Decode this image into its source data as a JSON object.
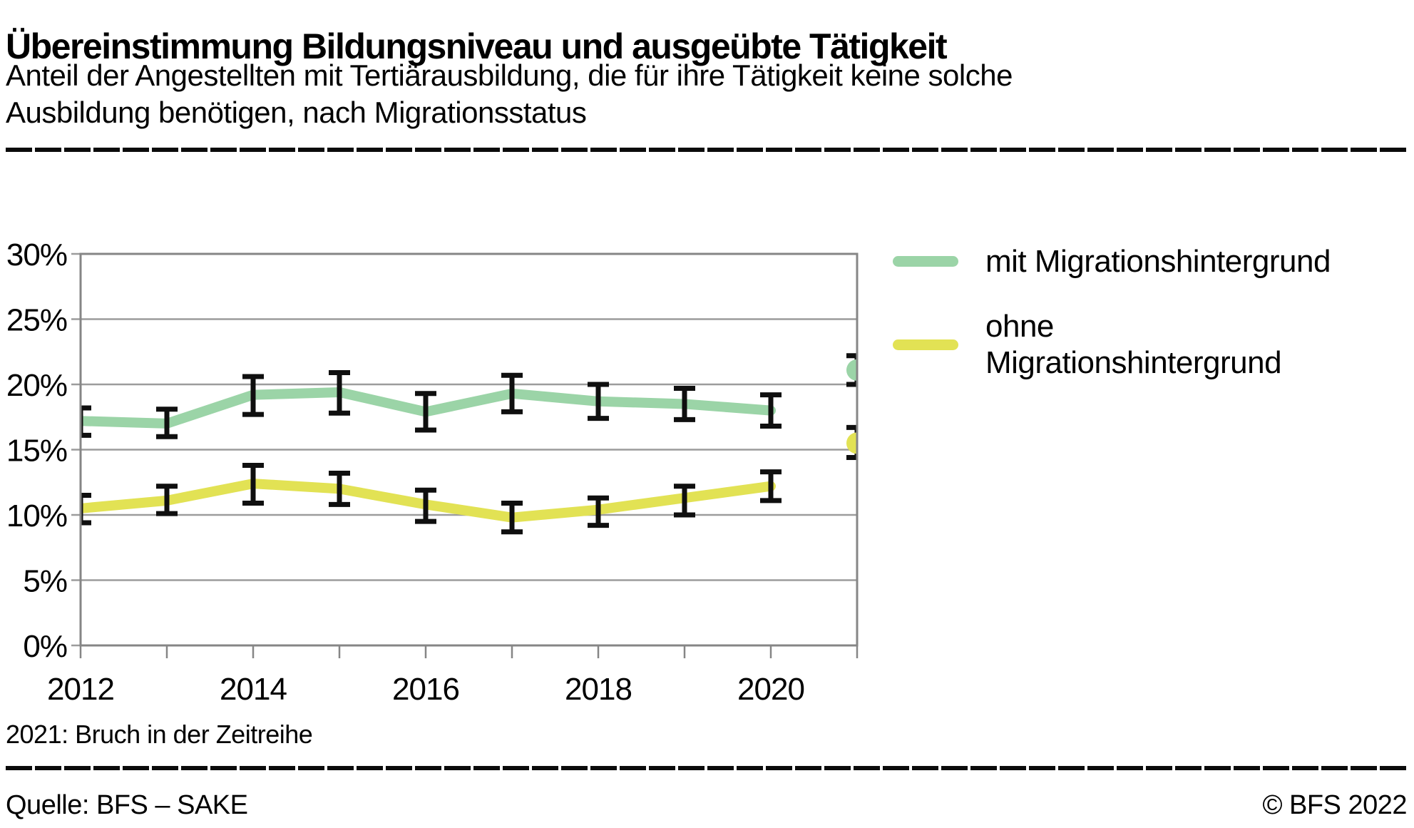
{
  "header": {
    "title": "Übereinstimmung Bildungsniveau und ausgeübte Tätigkeit",
    "subtitle_lines": [
      "Anteil der Angestellten mit Tertiärausbildung, die für ihre Tätigkeit keine solche",
      "Ausbildung benötigen, nach Migrationsstatus"
    ]
  },
  "legend": {
    "items": [
      {
        "label_lines": [
          "mit Migrationshintergrund"
        ]
      },
      {
        "label_lines": [
          "ohne",
          "Migrationshintergrund"
        ]
      }
    ]
  },
  "footnote": "2021: Bruch in der Zeitreihe",
  "footer": {
    "source": "Quelle: BFS – SAKE",
    "copyright": "© BFS 2022"
  },
  "chart_data": {
    "type": "line",
    "title": "Übereinstimmung Bildungsniveau und ausgeübte Tätigkeit",
    "x": [
      2012,
      2013,
      2014,
      2015,
      2016,
      2017,
      2018,
      2019,
      2020,
      2021
    ],
    "x_labeled": [
      2012,
      2014,
      2016,
      2018,
      2020
    ],
    "ylim": [
      0,
      30
    ],
    "yticks": [
      0,
      5,
      10,
      15,
      20,
      25,
      30
    ],
    "ytick_suffix": "%",
    "grid": "horizontal",
    "grid_color": "#9c9c9c",
    "axis_color": "#868686",
    "error_bar_color": "#0f0f0f",
    "series": [
      {
        "name": "mit Migrationshintergrund",
        "color": "#9bd4a7",
        "values": [
          17.2,
          17.0,
          19.2,
          19.4,
          17.9,
          19.3,
          18.7,
          18.5,
          18.0,
          21.1
        ],
        "ci_low": [
          16.1,
          16.0,
          17.7,
          17.8,
          16.5,
          17.9,
          17.4,
          17.3,
          16.8,
          20.0
        ],
        "ci_high": [
          18.2,
          18.1,
          20.6,
          20.9,
          19.3,
          20.7,
          20.0,
          19.7,
          19.2,
          22.2
        ]
      },
      {
        "name": "ohne Migrationshintergrund",
        "color": "#e2e254",
        "values": [
          10.5,
          11.1,
          12.4,
          12.0,
          10.8,
          9.8,
          10.4,
          11.3,
          12.2,
          15.5
        ],
        "ci_low": [
          9.4,
          10.1,
          10.9,
          10.8,
          9.5,
          8.7,
          9.2,
          10.0,
          11.1,
          14.4
        ],
        "ci_high": [
          11.5,
          12.2,
          13.8,
          13.2,
          11.9,
          10.9,
          11.3,
          12.2,
          13.3,
          16.7
        ]
      }
    ],
    "series_break": {
      "line_end_index": 8,
      "isolated_point_index": 9,
      "note": "2021: Bruch in der Zeitreihe"
    }
  }
}
